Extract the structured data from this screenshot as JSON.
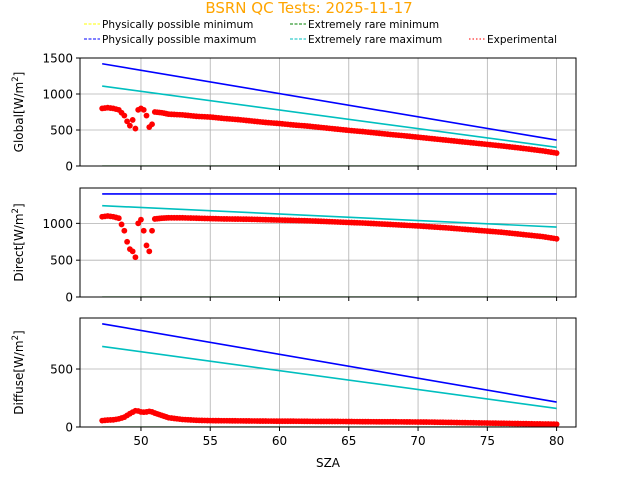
{
  "chart_data": {
    "type": "scatter",
    "title": "BSRN QC Tests: 2025-11-17",
    "title_color": "#ffa500",
    "xlabel": "SZA",
    "xlim": [
      45.6,
      81.4
    ],
    "xticks": [
      50,
      55,
      60,
      65,
      70,
      75,
      80
    ],
    "grid": true,
    "legend": {
      "placement": "top",
      "entries": [
        {
          "label": "Physically possible minimum",
          "color": "#ffff00",
          "style": "dashed"
        },
        {
          "label": "Extremely rare minimum",
          "color": "#008000",
          "style": "dashed"
        },
        {
          "label": "Physically possible maximum",
          "color": "#0000ff",
          "style": "dashed"
        },
        {
          "label": "Extremely rare maximum",
          "color": "#00bfbf",
          "style": "dashed"
        },
        {
          "label": "Experimental",
          "color": "#ff0000",
          "style": "dotted"
        }
      ]
    },
    "panels": [
      {
        "id": "global",
        "ylabel": "Global",
        "yunit_base": "[W/m",
        "yunit_exp": "2",
        "yunit_end": "]",
        "ylim": [
          0,
          1500
        ],
        "yticks": [
          0,
          500,
          1000,
          1500
        ],
        "series": [
          {
            "role": "Physically possible minimum",
            "color": "#ffff00",
            "x": [
              47.2,
              80.0
            ],
            "y": [
              -4,
              -4
            ]
          },
          {
            "role": "Extremely rare minimum",
            "color": "#008000",
            "x": [
              47.2,
              80.0
            ],
            "y": [
              -2,
              -2
            ]
          },
          {
            "role": "Physically possible maximum",
            "color": "#0000ff",
            "x": [
              47.2,
              80.0
            ],
            "y": [
              1420,
              360
            ]
          },
          {
            "role": "Extremely rare maximum",
            "color": "#00bfbf",
            "x": [
              47.2,
              80.0
            ],
            "y": [
              1110,
              260
            ]
          },
          {
            "role": "Experimental",
            "color": "#ff0000",
            "x": [
              47.2,
              47.6,
              48.0,
              48.4,
              48.8,
              49.0,
              49.2,
              49.4,
              49.6,
              49.8,
              50.0,
              50.2,
              50.4,
              50.6,
              50.8,
              51.0,
              51.5,
              52,
              53,
              54,
              55,
              56,
              57,
              58,
              59,
              60,
              61,
              62,
              63,
              64,
              65,
              66,
              67,
              68,
              69,
              70,
              71,
              72,
              73,
              74,
              75,
              76,
              77,
              78,
              79,
              80
            ],
            "y": [
              800,
              810,
              800,
              780,
              700,
              620,
              560,
              640,
              520,
              780,
              800,
              780,
              700,
              540,
              580,
              750,
              740,
              720,
              710,
              690,
              680,
              660,
              645,
              625,
              605,
              590,
              570,
              555,
              535,
              515,
              495,
              478,
              458,
              438,
              420,
              400,
              380,
              360,
              340,
              320,
              300,
              280,
              258,
              235,
              210,
              180
            ]
          }
        ]
      },
      {
        "id": "direct",
        "ylabel": "Direct",
        "yunit_base": "[W/m",
        "yunit_exp": "2",
        "yunit_end": "]",
        "ylim": [
          0,
          1480
        ],
        "yticks": [
          0,
          500,
          1000
        ],
        "series": [
          {
            "role": "Physically possible minimum",
            "color": "#ffff00",
            "x": [
              47.2,
              80.0
            ],
            "y": [
              -4,
              -4
            ]
          },
          {
            "role": "Extremely rare minimum",
            "color": "#008000",
            "x": [
              47.2,
              80.0
            ],
            "y": [
              -2,
              -2
            ]
          },
          {
            "role": "Physically possible maximum",
            "color": "#0000ff",
            "x": [
              47.2,
              80.0
            ],
            "y": [
              1400,
              1400
            ]
          },
          {
            "role": "Extremely rare maximum",
            "color": "#00bfbf",
            "x": [
              47.2,
              80.0
            ],
            "y": [
              1240,
              950
            ]
          },
          {
            "role": "Experimental",
            "color": "#ff0000",
            "x": [
              47.2,
              47.6,
              48.0,
              48.4,
              48.8,
              49.0,
              49.2,
              49.4,
              49.6,
              49.8,
              50.0,
              50.2,
              50.4,
              50.6,
              50.8,
              51.0,
              51.5,
              52,
              53,
              54,
              55,
              56,
              57,
              58,
              59,
              60,
              61,
              62,
              63,
              64,
              65,
              66,
              67,
              68,
              69,
              70,
              71,
              72,
              73,
              74,
              75,
              76,
              77,
              78,
              79,
              80
            ],
            "y": [
              1090,
              1100,
              1090,
              1070,
              900,
              750,
              650,
              620,
              540,
              1000,
              1050,
              900,
              700,
              620,
              900,
              1060,
              1070,
              1075,
              1075,
              1070,
              1065,
              1060,
              1058,
              1055,
              1050,
              1045,
              1040,
              1035,
              1028,
              1020,
              1012,
              1005,
              995,
              985,
              975,
              965,
              952,
              940,
              925,
              910,
              895,
              880,
              860,
              840,
              820,
              790
            ]
          }
        ]
      },
      {
        "id": "diffuse",
        "ylabel": "Diffuse",
        "yunit_base": "[W/m",
        "yunit_exp": "2",
        "yunit_end": "]",
        "ylim": [
          0,
          940
        ],
        "yticks": [
          0,
          500
        ],
        "series": [
          {
            "role": "Physically possible minimum",
            "color": "#ffff00",
            "x": [
              47.2,
              80.0
            ],
            "y": [
              -4,
              -4
            ]
          },
          {
            "role": "Extremely rare minimum",
            "color": "#008000",
            "x": [
              47.2,
              80.0
            ],
            "y": [
              -2,
              -2
            ]
          },
          {
            "role": "Physically possible maximum",
            "color": "#0000ff",
            "x": [
              47.2,
              80.0
            ],
            "y": [
              890,
              215
            ]
          },
          {
            "role": "Extremely rare maximum",
            "color": "#00bfbf",
            "x": [
              47.2,
              80.0
            ],
            "y": [
              695,
              160
            ]
          },
          {
            "role": "Experimental",
            "color": "#ff0000",
            "x": [
              47.2,
              47.6,
              48.0,
              48.4,
              48.8,
              49.0,
              49.2,
              49.4,
              49.6,
              49.8,
              50.0,
              50.2,
              50.4,
              50.6,
              50.8,
              51.0,
              51.5,
              52,
              53,
              54,
              55,
              56,
              57,
              58,
              59,
              60,
              61,
              62,
              63,
              64,
              65,
              66,
              67,
              68,
              69,
              70,
              71,
              72,
              73,
              74,
              75,
              76,
              77,
              78,
              79,
              80
            ],
            "y": [
              55,
              60,
              62,
              70,
              85,
              100,
              115,
              128,
              140,
              138,
              130,
              128,
              130,
              135,
              130,
              120,
              100,
              80,
              65,
              58,
              55,
              54,
              53,
              52,
              51,
              50,
              50,
              49,
              48,
              48,
              47,
              46,
              45,
              45,
              44,
              43,
              42,
              40,
              38,
              36,
              34,
              32,
              30,
              28,
              26,
              24
            ]
          }
        ]
      }
    ]
  }
}
